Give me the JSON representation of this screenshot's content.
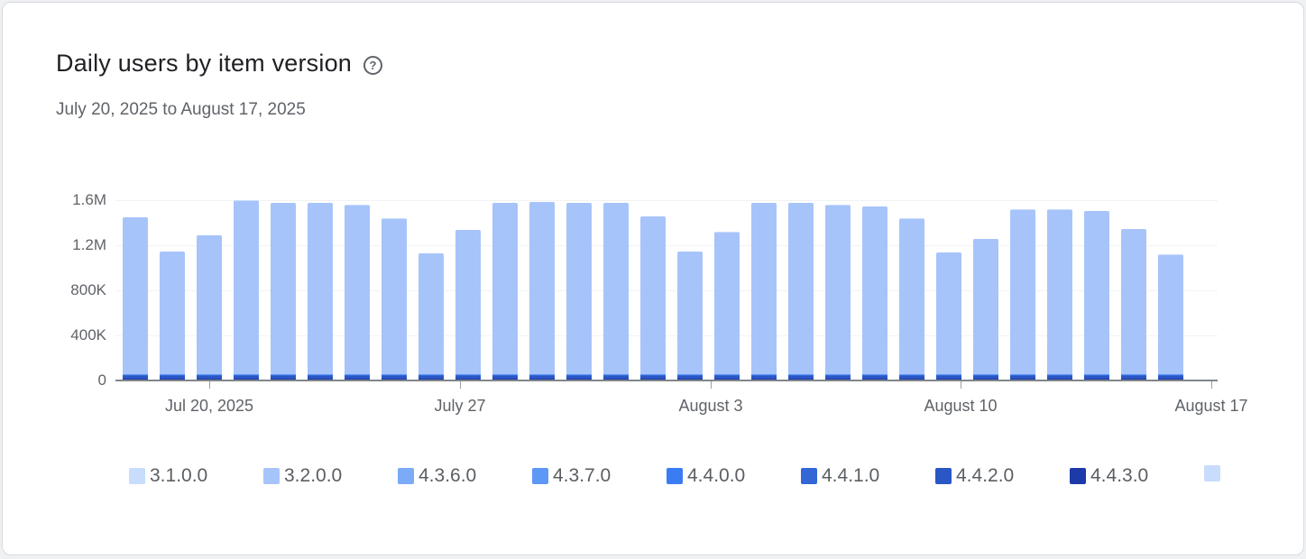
{
  "card": {
    "title": "Daily users by item version",
    "help_icon_glyph": "?",
    "subtitle": "July 20, 2025 to August 17, 2025"
  },
  "chart_data": {
    "type": "bar",
    "stacked": true,
    "title": "Daily users by item version",
    "xlabel": "",
    "ylabel": "",
    "ylim": [
      0,
      1600000
    ],
    "grid": "horizontal-faint",
    "legend_position": "bottom",
    "days": 29,
    "y_ticks": [
      {
        "label": "0",
        "value": 0
      },
      {
        "label": "400K",
        "value": 400000
      },
      {
        "label": "800K",
        "value": 800000
      },
      {
        "label": "1.2M",
        "value": 1200000
      },
      {
        "label": "1.6M",
        "value": 1600000
      }
    ],
    "x_ticks": [
      {
        "label": "Jul 20, 2025"
      },
      {
        "label": "July 27"
      },
      {
        "label": "August 3"
      },
      {
        "label": "August 10"
      },
      {
        "label": "August 17"
      }
    ],
    "stack_order_bottom_to_top": [
      "4.4.3.0",
      "4.4.2.0",
      "4.4.1.0",
      "4.4.0.0",
      "4.3.7.0",
      "4.3.6.0",
      "3.2.0.0",
      "3.1.0.0"
    ],
    "series": [
      {
        "name": "3.1.0.0",
        "color": "#c8dcfc",
        "values": [
          2000,
          2000,
          2000,
          2000,
          2000,
          2000,
          2000,
          2000,
          2000,
          2000,
          2000,
          2000,
          2000,
          2000,
          2000,
          2000,
          2000,
          2000,
          2000,
          2000,
          2000,
          2000,
          2000,
          2000,
          2000,
          2000,
          2000,
          2000,
          2000
        ]
      },
      {
        "name": "3.2.0.0",
        "color": "#a7c4fa",
        "values": [
          1391000,
          1091000,
          1231000,
          1541000,
          1521000,
          1521000,
          1501000,
          1381000,
          1071000,
          1281000,
          1521000,
          1531000,
          1521000,
          1521000,
          1401000,
          1091000,
          1261000,
          1521000,
          1521000,
          1501000,
          1491000,
          1381000,
          1081000,
          1201000,
          1461000,
          1461000,
          1451000,
          1291000,
          1061000
        ]
      },
      {
        "name": "4.3.6.0",
        "color": "#7baaf7",
        "values": [
          2000,
          2000,
          2000,
          2000,
          2000,
          2000,
          2000,
          2000,
          2000,
          2000,
          2000,
          2000,
          2000,
          2000,
          2000,
          2000,
          2000,
          2000,
          2000,
          2000,
          2000,
          2000,
          2000,
          2000,
          2000,
          2000,
          2000,
          2000,
          2000
        ]
      },
      {
        "name": "4.3.7.0",
        "color": "#5e97f6",
        "values": [
          3000,
          3000,
          3000,
          3000,
          3000,
          3000,
          3000,
          3000,
          3000,
          3000,
          3000,
          3000,
          3000,
          3000,
          3000,
          3000,
          3000,
          3000,
          3000,
          3000,
          3000,
          3000,
          3000,
          3000,
          3000,
          3000,
          3000,
          3000,
          3000
        ]
      },
      {
        "name": "4.4.0.0",
        "color": "#3b7cf5",
        "values": [
          4000,
          4000,
          4000,
          4000,
          4000,
          4000,
          4000,
          4000,
          4000,
          4000,
          4000,
          4000,
          4000,
          4000,
          4000,
          4000,
          4000,
          4000,
          4000,
          4000,
          4000,
          4000,
          4000,
          4000,
          4000,
          4000,
          4000,
          4000,
          4000
        ]
      },
      {
        "name": "4.4.1.0",
        "color": "#3367d6",
        "values": [
          8000,
          8000,
          8000,
          8000,
          8000,
          8000,
          8000,
          8000,
          8000,
          8000,
          8000,
          8000,
          8000,
          8000,
          8000,
          8000,
          8000,
          8000,
          8000,
          8000,
          8000,
          8000,
          8000,
          8000,
          8000,
          8000,
          8000,
          8000,
          8000
        ]
      },
      {
        "name": "4.4.2.0",
        "color": "#2a56c6",
        "values": [
          20000,
          20000,
          20000,
          20000,
          20000,
          20000,
          20000,
          20000,
          20000,
          20000,
          20000,
          20000,
          20000,
          20000,
          20000,
          20000,
          20000,
          20000,
          20000,
          20000,
          20000,
          20000,
          20000,
          20000,
          20000,
          20000,
          20000,
          20000,
          20000
        ]
      },
      {
        "name": "4.4.3.0",
        "color": "#1c3aa9",
        "values": [
          10000,
          10000,
          10000,
          10000,
          10000,
          10000,
          10000,
          10000,
          10000,
          10000,
          10000,
          10000,
          10000,
          10000,
          10000,
          10000,
          10000,
          10000,
          10000,
          10000,
          10000,
          10000,
          10000,
          10000,
          10000,
          10000,
          10000,
          10000,
          10000
        ]
      }
    ],
    "daily_totals": [
      1440000,
      1140000,
      1280000,
      1590000,
      1570000,
      1570000,
      1550000,
      1430000,
      1120000,
      1330000,
      1570000,
      1580000,
      1570000,
      1570000,
      1450000,
      1140000,
      1310000,
      1570000,
      1570000,
      1550000,
      1540000,
      1430000,
      1130000,
      1250000,
      1510000,
      1510000,
      1500000,
      1340000,
      1110000
    ]
  },
  "legend": {
    "items": [
      {
        "label": "3.1.0.0",
        "color": "#c8dcfc"
      },
      {
        "label": "3.2.0.0",
        "color": "#a7c4fa"
      },
      {
        "label": "4.3.6.0",
        "color": "#7baaf7"
      },
      {
        "label": "4.3.7.0",
        "color": "#5e97f6"
      },
      {
        "label": "4.4.0.0",
        "color": "#3b7cf5"
      },
      {
        "label": "4.4.1.0",
        "color": "#3367d6"
      },
      {
        "label": "4.4.2.0",
        "color": "#2a56c6"
      },
      {
        "label": "4.4.3.0",
        "color": "#1c3aa9"
      },
      {
        "label": "",
        "color": "#c8dcfc"
      }
    ]
  }
}
